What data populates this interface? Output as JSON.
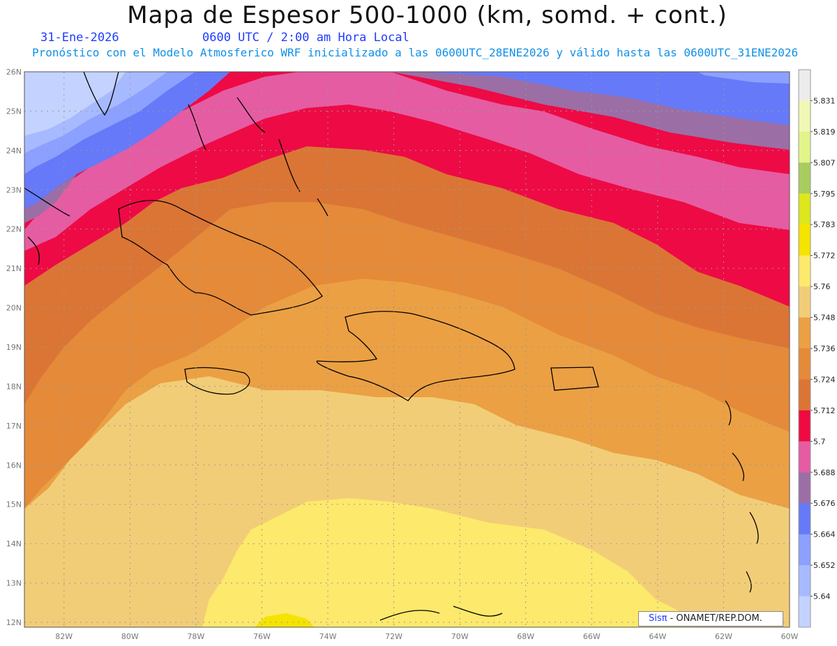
{
  "header": {
    "title": "Mapa de Espesor 500-1000 (km, somd. + cont.)",
    "date": "31-Ene-2026",
    "time": "0600 UTC / 2:00 am Hora Local",
    "forecast": "Pronóstico con el Modelo Atmosferico WRF inicializado a las 0600UTC_28ENE2026 y válido hasta las  0600UTC_31ENE2026"
  },
  "map": {
    "lat_labels": [
      "26N",
      "25N",
      "24N",
      "23N",
      "22N",
      "21N",
      "20N",
      "19N",
      "18N",
      "17N",
      "16N",
      "15N",
      "14N",
      "13N",
      "12N"
    ],
    "lon_labels": [
      "82W",
      "80W",
      "78W",
      "76W",
      "74W",
      "72W",
      "70W",
      "68W",
      "66W",
      "64W",
      "62W",
      "60W"
    ],
    "lat_range": [
      12,
      26
    ],
    "lon_range": [
      -83.2,
      -60
    ],
    "gridlines": true
  },
  "colorbar": {
    "levels": [
      "5.831",
      "5.819",
      "5.807",
      "5.795",
      "5.783",
      "5.772",
      "5.76",
      "5.748",
      "5.736",
      "5.724",
      "5.712",
      "5.7",
      "5.688",
      "5.676",
      "5.664",
      "5.652",
      "5.64"
    ],
    "colors": [
      "#ececec",
      "#f1f7b4",
      "#e2f58a",
      "#a8cc60",
      "#dde71c",
      "#f5e300",
      "#fde96c",
      "#f2cd77",
      "#eba043",
      "#e48a39",
      "#db7535",
      "#ef0a41",
      "#e55ca2",
      "#9c6ea6",
      "#6679f8",
      "#8ca0ff",
      "#a7baff",
      "#c4d2ff"
    ]
  },
  "logo": {
    "sis": "Sisπ",
    "org": "- ONAMET/REP.DOM."
  }
}
